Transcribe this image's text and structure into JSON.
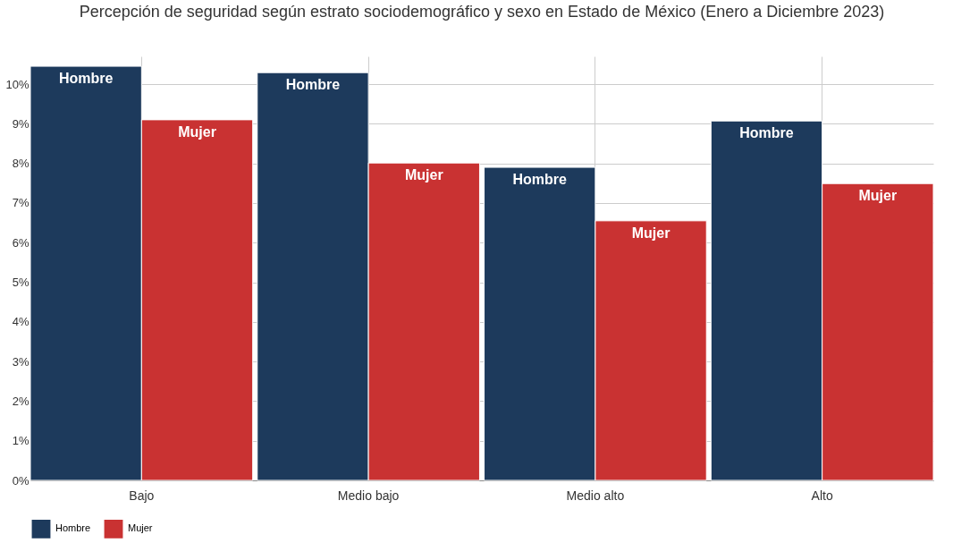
{
  "chart_data": {
    "type": "bar",
    "title": "Percepción de seguridad según estrato sociodemográfico y sexo en Estado de México (Enero a Diciembre 2023)",
    "categories": [
      "Bajo",
      "Medio bajo",
      "Medio alto",
      "Alto"
    ],
    "series": [
      {
        "name": "Hombre",
        "color": "#1d3a5c",
        "values": [
          10.45,
          10.29,
          7.9,
          9.07
        ]
      },
      {
        "name": "Mujer",
        "color": "#c93232",
        "values": [
          9.1,
          8.01,
          6.55,
          7.49
        ]
      }
    ],
    "ylim": [
      0,
      10.7
    ],
    "yticks": [
      {
        "value": 0,
        "label": "0%"
      },
      {
        "value": 1,
        "label": "1%"
      },
      {
        "value": 2,
        "label": "2%"
      },
      {
        "value": 3,
        "label": "3%"
      },
      {
        "value": 4,
        "label": "4%"
      },
      {
        "value": 5,
        "label": "5%"
      },
      {
        "value": 6,
        "label": "6%"
      },
      {
        "value": 7,
        "label": "7%"
      },
      {
        "value": 8,
        "label": "8%"
      },
      {
        "value": 9,
        "label": "9%"
      },
      {
        "value": 10,
        "label": "10%"
      }
    ],
    "grid": true,
    "legend": "bottom"
  }
}
